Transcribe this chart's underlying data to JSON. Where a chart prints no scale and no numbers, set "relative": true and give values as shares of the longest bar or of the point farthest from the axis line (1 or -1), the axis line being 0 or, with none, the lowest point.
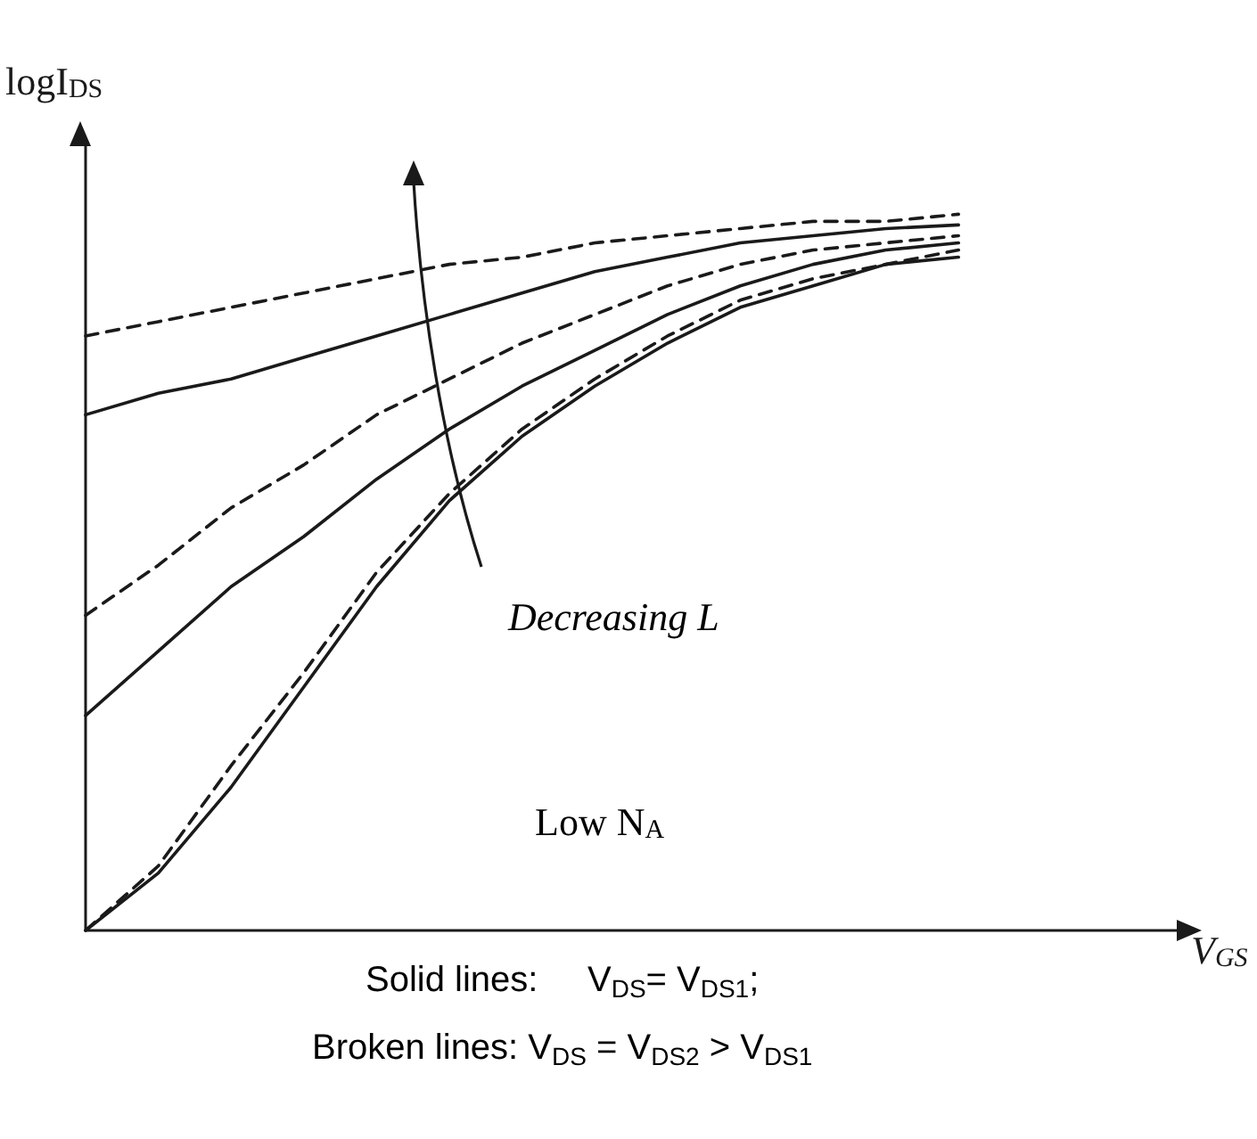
{
  "chart_data": {
    "type": "line",
    "relative": true,
    "xlabel": "V$_{GS}$",
    "ylabel": "logI$_{DS}$",
    "categories": [
      null,
      null,
      null,
      null,
      null,
      null,
      null,
      null,
      null,
      null,
      null,
      null,
      null,
      null,
      null,
      null
    ],
    "series": [
      {
        "color": "#1a1a1a",
        "line_style": "dashed",
        "values": [
          0.83,
          0.85,
          0.87,
          0.89,
          0.91,
          0.93,
          0.94,
          0.96,
          0.97,
          0.98,
          0.99,
          0.99,
          1,
          null,
          null,
          null
        ]
      },
      {
        "color": "#1a1a1a",
        "line_style": "solid",
        "values": [
          0.72,
          0.75,
          0.77,
          0.8,
          0.83,
          0.86,
          0.89,
          0.92,
          0.94,
          0.96,
          0.97,
          0.98,
          0.985,
          null,
          null,
          null
        ]
      },
      {
        "color": "#1a1a1a",
        "line_style": "dashed",
        "values": [
          0.44,
          0.51,
          0.59,
          0.65,
          0.72,
          0.77,
          0.82,
          0.86,
          0.9,
          0.93,
          0.95,
          0.96,
          0.97,
          null,
          null,
          null
        ]
      },
      {
        "color": "#1a1a1a",
        "line_style": "solid",
        "values": [
          0.3,
          0.39,
          0.48,
          0.55,
          0.63,
          0.7,
          0.76,
          0.81,
          0.86,
          0.9,
          0.93,
          0.95,
          0.96,
          null,
          null,
          null
        ]
      },
      {
        "color": "#1a1a1a",
        "line_style": "dashed",
        "values": [
          0,
          0.09,
          0.23,
          0.36,
          0.5,
          0.61,
          0.7,
          0.77,
          0.83,
          0.88,
          0.91,
          0.93,
          0.95,
          null,
          null,
          null
        ]
      },
      {
        "color": "#1a1a1a",
        "line_style": "solid",
        "values": [
          0,
          0.08,
          0.2,
          0.34,
          0.48,
          0.6,
          0.69,
          0.76,
          0.82,
          0.87,
          0.9,
          0.93,
          0.94,
          null,
          null,
          null
        ]
      }
    ],
    "annotations": [
      "Decreasing L",
      "Low N$_{A}$",
      "Solid lines:     V$_{DS}$= V$_{DS1}$;",
      "Broken lines: V$_{DS}$ = V$_{DS2}$ > V$_{DS1}$"
    ],
    "grid": false,
    "marker": "none"
  }
}
